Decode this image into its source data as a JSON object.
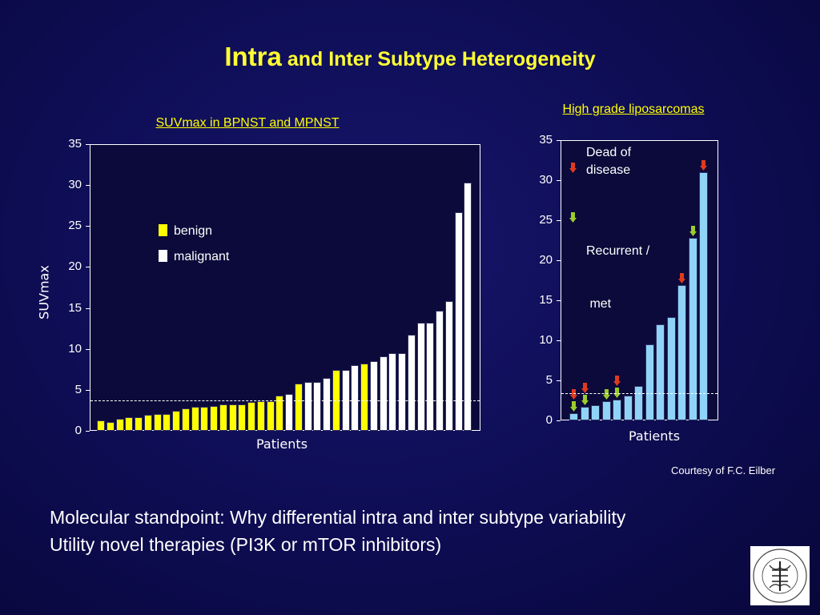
{
  "slide": {
    "title_part1": "Intra",
    "title_part2": " and Inter Subtype Heterogeneity",
    "footer_line1": "Molecular standpoint: Why differential intra and inter subtype variability",
    "footer_line2": "Utility novel therapies (PI3K or mTOR inhibitors)",
    "credit": "Courtesy of F.C. Eilber",
    "logo_text": "MEMORIAL SLOAN-KETTERING CANCER CENTER · ESTABLISHED 1884"
  },
  "colors": {
    "background": "#0f0e58",
    "title": "#ffff33",
    "benign": "#ffff00",
    "malignant": "#ffffff",
    "liposarcoma": "#8fd3f7",
    "dead_arrow": "#e03a1e",
    "recurrent_arrow": "#9ccc2a"
  },
  "chart_data": [
    {
      "type": "bar",
      "title": "SUVmax in BPNST and MPNST",
      "xlabel": "Patients",
      "ylabel": "SUVmax",
      "ylim": [
        0,
        35
      ],
      "yticks": [
        "0",
        "5",
        "10",
        "15",
        "20",
        "25",
        "30",
        "35"
      ],
      "threshold": 3.8,
      "legend": [
        {
          "label": "benign",
          "color": "#ffff00"
        },
        {
          "label": "malignant",
          "color": "#ffffff"
        }
      ],
      "values": [
        1.3,
        1.1,
        1.5,
        1.7,
        1.7,
        2.0,
        2.1,
        2.1,
        2.4,
        2.7,
        2.9,
        2.9,
        3.0,
        3.2,
        3.2,
        3.2,
        3.5,
        3.6,
        3.6,
        4.3,
        4.5,
        5.8,
        6.0,
        6.0,
        6.5,
        7.4,
        7.4,
        8.0,
        8.2,
        8.5,
        9.1,
        9.5,
        9.5,
        11.7,
        13.2,
        13.2,
        14.7,
        15.8,
        26.7,
        30.3
      ],
      "types": [
        "benign",
        "benign",
        "benign",
        "benign",
        "benign",
        "benign",
        "benign",
        "benign",
        "benign",
        "benign",
        "benign",
        "benign",
        "benign",
        "benign",
        "benign",
        "benign",
        "benign",
        "benign",
        "benign",
        "benign",
        "malignant",
        "benign",
        "malignant",
        "malignant",
        "malignant",
        "benign",
        "malignant",
        "malignant",
        "benign",
        "malignant",
        "malignant",
        "malignant",
        "malignant",
        "malignant",
        "malignant",
        "malignant",
        "malignant",
        "malignant",
        "malignant",
        "malignant"
      ]
    },
    {
      "type": "bar",
      "title": "High grade liposarcomas",
      "xlabel": "Patients",
      "ylim": [
        0,
        35
      ],
      "yticks": [
        "0",
        "5",
        "10",
        "15",
        "20",
        "25",
        "30",
        "35"
      ],
      "threshold": 3.5,
      "legend": [
        {
          "label_line1": "Dead of",
          "label_line2": "disease",
          "marker": "dead"
        },
        {
          "label_line1": "Recurrent /",
          "label_line2": " met",
          "marker": "recurrent"
        }
      ],
      "values": [
        0.9,
        1.7,
        1.9,
        2.4,
        2.6,
        3.1,
        4.3,
        9.5,
        12.0,
        12.9,
        16.9,
        22.8,
        31.0
      ],
      "markers": [
        [
          "dead",
          "recurrent"
        ],
        [
          "dead",
          "recurrent"
        ],
        [],
        [
          "recurrent"
        ],
        [
          "dead",
          "recurrent"
        ],
        [],
        [],
        [],
        [],
        [],
        [
          "dead"
        ],
        [
          "recurrent"
        ],
        [
          "dead"
        ]
      ]
    }
  ]
}
